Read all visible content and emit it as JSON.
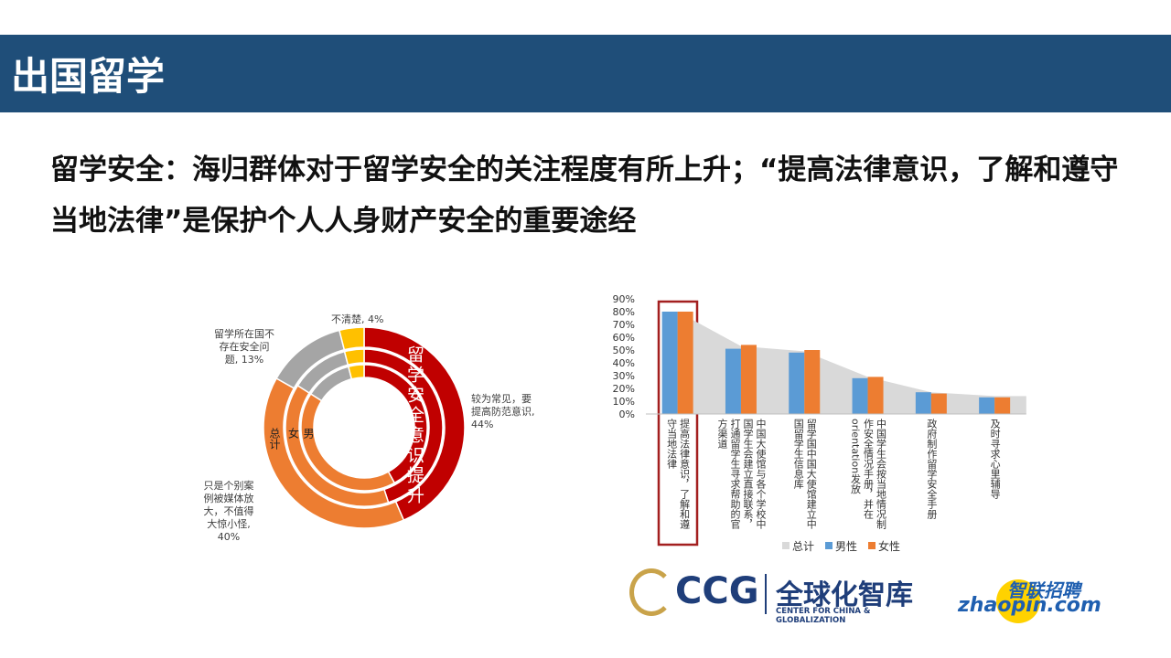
{
  "header": {
    "title": "出国留学"
  },
  "subtitle": "留学安全：海归群体对于留学安全的关注程度有所上升；“提高法律意识，了解和遵守当地法律”是保护个人人身财产安全的重要途经",
  "chart_data": [
    {
      "type": "donut",
      "categories": [
        "较为常见，要提高防范意识",
        "只是个别案例被媒体放大，不值得大惊小怪",
        "留学所在国不存在安全问题",
        "不清楚"
      ],
      "value_labels": [
        "44%",
        "40%",
        "13%",
        "4%"
      ],
      "colors": [
        "#c00000",
        "#ed7d31",
        "#a5a5a5",
        "#ffc000"
      ],
      "series": [
        {
          "name": "总计",
          "values": [
            44,
            40,
            13,
            4
          ]
        },
        {
          "name": "女",
          "values": [
            45,
            39,
            12,
            4
          ]
        },
        {
          "name": "男",
          "values": [
            42,
            42,
            12,
            4
          ]
        }
      ],
      "annotation": "留学安全意识提升"
    },
    {
      "type": "bar",
      "categories": [
        "提高法律意识，了解和遵守当地法律",
        "中国大使馆与各个学校中国学生会建立直接联系，打通留学生寻求帮助的官方渠道",
        "留学国中国大使馆建立中国留学生信息库",
        "中国学生会按当地情况制作安全情况手册，并在orientation发放",
        "政府制作留学安全手册",
        "及时寻求心里辅导"
      ],
      "series": [
        {
          "name": "总计",
          "kind": "area",
          "color": "#d9d9d9",
          "values": [
            80,
            53,
            49,
            29,
            17,
            14
          ]
        },
        {
          "name": "男性",
          "kind": "bar",
          "color": "#5b9bd5",
          "values": [
            80,
            51,
            48,
            28,
            17,
            13
          ]
        },
        {
          "name": "女性",
          "kind": "bar",
          "color": "#ed7d31",
          "values": [
            80,
            54,
            50,
            29,
            16,
            13
          ]
        }
      ],
      "ylim": [
        0,
        90
      ],
      "yticks": [
        {
          "value": 0,
          "label": "0%"
        },
        {
          "value": 10,
          "label": "10%"
        },
        {
          "value": 20,
          "label": "20%"
        },
        {
          "value": 30,
          "label": "30%"
        },
        {
          "value": 40,
          "label": "40%"
        },
        {
          "value": 50,
          "label": "50%"
        },
        {
          "value": 60,
          "label": "60%"
        },
        {
          "value": 70,
          "label": "70%"
        },
        {
          "value": 80,
          "label": "80%"
        },
        {
          "value": 90,
          "label": "90%"
        }
      ],
      "legend": "bottom"
    }
  ],
  "logos": {
    "ccg": "CCG",
    "ccg_cn": "全球化智库",
    "ccg_en": "CENTER FOR CHINA & GLOBALIZATION",
    "zhaopin_cn": "智联招聘",
    "zhaopin_en": "zhaopin.com"
  }
}
